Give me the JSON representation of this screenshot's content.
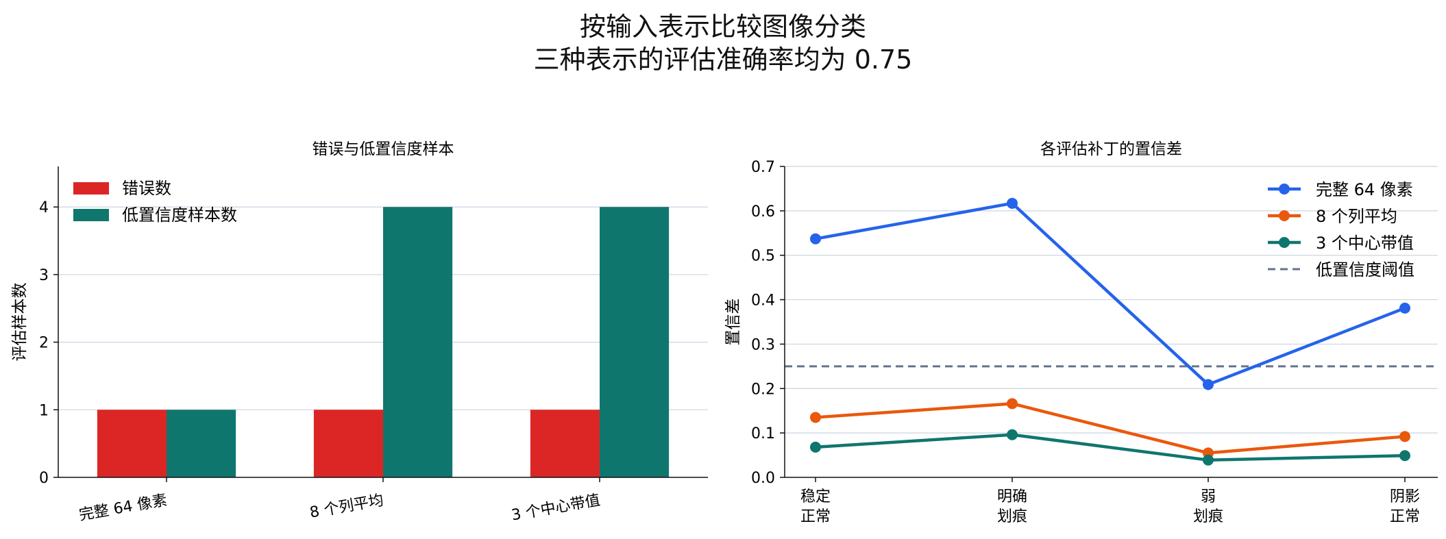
{
  "suptitle": [
    "按输入表示比较图像分类",
    "三种表示的评估准确率均为 0.75"
  ],
  "chart_data": [
    {
      "type": "bar",
      "title": "错误与低置信度样本",
      "xlabel": "",
      "ylabel": "评估样本数",
      "categories": [
        "完整 64 像素",
        "8 个列平均",
        "3 个中心带值"
      ],
      "series": [
        {
          "name": "错误数",
          "values": [
            1,
            1,
            1
          ],
          "color": "#dc2626"
        },
        {
          "name": "低置信度样本数",
          "values": [
            1,
            4,
            4
          ],
          "color": "#0f766e"
        }
      ],
      "ylim": [
        0,
        4.6
      ],
      "yticks": [
        0,
        1,
        2,
        3,
        4
      ],
      "grid": "y",
      "legend": "top-left"
    },
    {
      "type": "line",
      "title": "各评估补丁的置信差",
      "xlabel": "",
      "ylabel": "置信差",
      "categories": [
        [
          "稳定",
          "正常"
        ],
        [
          "明确",
          "划痕"
        ],
        [
          "弱",
          "划痕"
        ],
        [
          "阴影",
          "正常"
        ]
      ],
      "series": [
        {
          "name": "完整 64 像素",
          "values": [
            0.537,
            0.617,
            0.209,
            0.381
          ],
          "color": "#2563eb"
        },
        {
          "name": "8 个列平均",
          "values": [
            0.135,
            0.166,
            0.055,
            0.092
          ],
          "color": "#ea580c"
        },
        {
          "name": "3 个中心带值",
          "values": [
            0.068,
            0.096,
            0.039,
            0.049
          ],
          "color": "#0f766e"
        }
      ],
      "threshold": {
        "name": "低置信度阈值",
        "value": 0.25,
        "color": "#64748b"
      },
      "ylim": [
        0,
        0.7
      ],
      "yticks": [
        0.0,
        0.1,
        0.2,
        0.3,
        0.4,
        0.5,
        0.6,
        0.7
      ],
      "grid": "y",
      "legend": "top-right"
    }
  ]
}
